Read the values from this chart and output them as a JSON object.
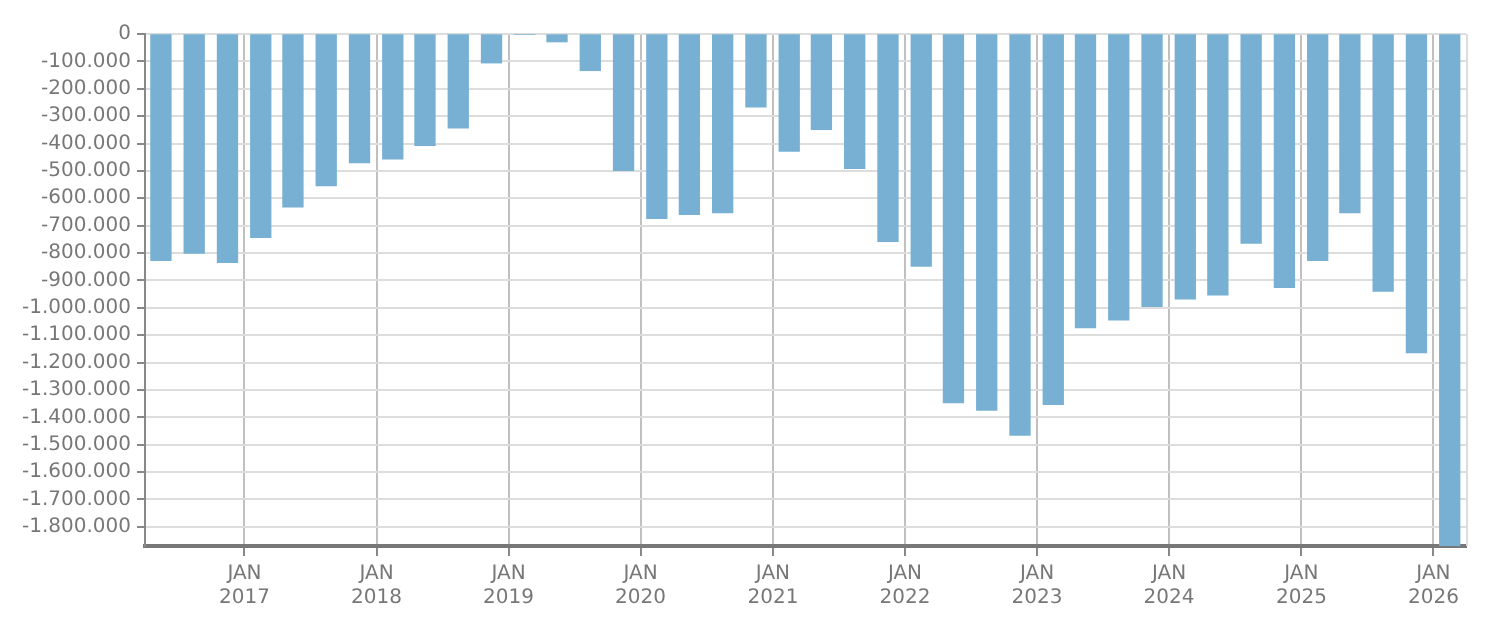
{
  "chart_data": {
    "type": "bar",
    "x": [
      "2016-05-15",
      "2016-08-15",
      "2016-11-15",
      "2017-02-15",
      "2017-05-15",
      "2017-08-15",
      "2017-11-15",
      "2018-02-15",
      "2018-05-15",
      "2018-08-15",
      "2018-11-15",
      "2019-02-15",
      "2019-05-15",
      "2019-08-15",
      "2019-11-15",
      "2020-02-15",
      "2020-05-15",
      "2020-08-15",
      "2020-11-15",
      "2021-02-15",
      "2021-05-15",
      "2021-08-15",
      "2021-11-15",
      "2022-02-15",
      "2022-05-15",
      "2022-08-15",
      "2022-11-15",
      "2023-02-15",
      "2023-05-15",
      "2023-08-15",
      "2023-11-15",
      "2024-02-15",
      "2024-05-15",
      "2024-08-15",
      "2024-11-15",
      "2025-02-15",
      "2025-05-15",
      "2025-08-15",
      "2025-11-15",
      "2026-02-15"
    ],
    "series": [
      {
        "color": "#77b0d3",
        "values": [
          -827000,
          -800000,
          -834000,
          -743000,
          -631000,
          -554000,
          -470000,
          -456000,
          -407000,
          -343000,
          -105000,
          0,
          -28000,
          -133000,
          -498000,
          -673000,
          -659000,
          -652000,
          -266000,
          -428000,
          -348000,
          -491000,
          -757000,
          -848000,
          -1346000,
          -1374000,
          -1465000,
          -1353000,
          -1072000,
          -1044000,
          -995000,
          -967000,
          -953000,
          -764000,
          -925000,
          -827000,
          -652000,
          -939000,
          -1164000,
          -1870000
        ]
      }
    ],
    "xlim": [
      "2016-04-01",
      "2026-04-01"
    ],
    "xticks": [
      {
        "value": "2017-01-01",
        "label": "JAN 2017"
      },
      {
        "value": "2018-01-01",
        "label": "JAN 2018"
      },
      {
        "value": "2019-01-01",
        "label": "JAN 2019"
      },
      {
        "value": "2020-01-01",
        "label": "JAN 2020"
      },
      {
        "value": "2021-01-01",
        "label": "JAN 2021"
      },
      {
        "value": "2022-01-01",
        "label": "JAN 2022"
      },
      {
        "value": "2023-01-01",
        "label": "JAN 2023"
      },
      {
        "value": "2024-01-01",
        "label": "JAN 2024"
      },
      {
        "value": "2025-01-01",
        "label": "JAN 2025"
      },
      {
        "value": "2026-01-01",
        "label": "JAN 2026"
      }
    ],
    "ylim": [
      -1870000,
      0
    ],
    "yticks": [
      {
        "value": 0,
        "label": "0"
      },
      {
        "value": -100000,
        "label": "-100.000"
      },
      {
        "value": -200000,
        "label": "-200.000"
      },
      {
        "value": -300000,
        "label": "-300.000"
      },
      {
        "value": -400000,
        "label": "-400.000"
      },
      {
        "value": -500000,
        "label": "-500.000"
      },
      {
        "value": -600000,
        "label": "-600.000"
      },
      {
        "value": -700000,
        "label": "-700.000"
      },
      {
        "value": -800000,
        "label": "-800.000"
      },
      {
        "value": -900000,
        "label": "-900.000"
      },
      {
        "value": -1000000,
        "label": "-1.000.000"
      },
      {
        "value": -1100000,
        "label": "-1.100.000"
      },
      {
        "value": -1200000,
        "label": "-1.200.000"
      },
      {
        "value": -1300000,
        "label": "-1.300.000"
      },
      {
        "value": -1400000,
        "label": "-1.400.000"
      },
      {
        "value": -1500000,
        "label": "-1.500.000"
      },
      {
        "value": -1600000,
        "label": "-1.600.000"
      },
      {
        "value": -1700000,
        "label": "-1.700.000"
      },
      {
        "value": -1800000,
        "label": "-1.800.000"
      }
    ],
    "grid": true
  }
}
